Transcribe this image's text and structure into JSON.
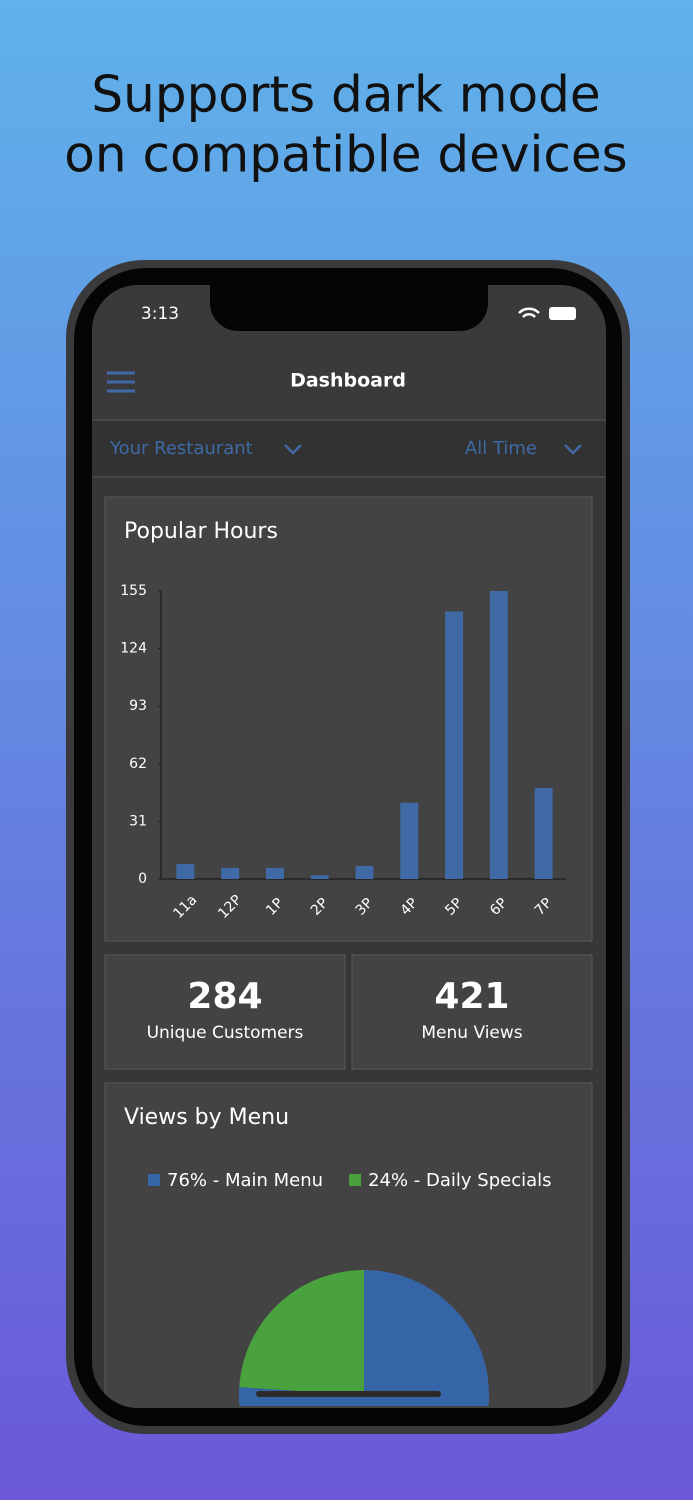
{
  "headline": [
    "Supports dark mode",
    "on compatible devices"
  ],
  "status_bar": {
    "time": "3:13"
  },
  "nav": {
    "title": "Dashboard"
  },
  "filters": [
    "Your Restaurant",
    "All Time"
  ],
  "stats": [
    {
      "value": "284",
      "label": "Unique Customers"
    },
    {
      "value": "421",
      "label": "Menu Views"
    }
  ],
  "chart_data": [
    {
      "type": "bar",
      "title": "Popular Hours",
      "categories": [
        "11a",
        "12P",
        "1P",
        "2P",
        "3P",
        "4P",
        "5P",
        "6P",
        "7P"
      ],
      "values": [
        8,
        6,
        6,
        2,
        7,
        41,
        144,
        155,
        49
      ],
      "color": "#3f6aa6",
      "ylim": [
        0,
        155
      ],
      "yticks": [
        0,
        31,
        62,
        93,
        124,
        155
      ]
    },
    {
      "type": "pie",
      "title": "Views by Menu",
      "categories": [
        "Main Menu",
        "Daily Specials"
      ],
      "values": [
        76,
        24
      ],
      "value_labels": [
        "76% - Main Menu",
        "24% - Daily Specials"
      ],
      "colors": [
        "#3565a6",
        "#4aa23f"
      ]
    }
  ]
}
